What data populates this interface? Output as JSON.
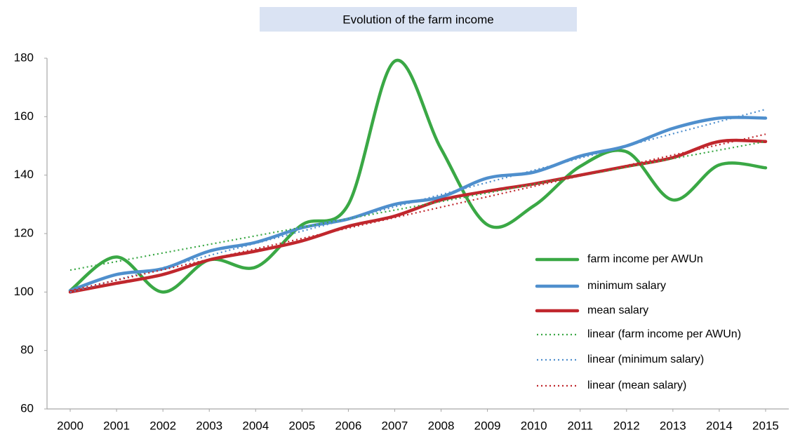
{
  "chart_data": {
    "type": "line",
    "title": "Evolution of the farm income",
    "x": [
      2000,
      2001,
      2002,
      2003,
      2004,
      2005,
      2006,
      2007,
      2008,
      2009,
      2010,
      2011,
      2012,
      2013,
      2014,
      2015
    ],
    "xlim": [
      1999.5,
      2015.5
    ],
    "xticks": [
      2000,
      2001,
      2002,
      2003,
      2004,
      2005,
      2006,
      2007,
      2008,
      2009,
      2010,
      2011,
      2012,
      2013,
      2014,
      2015
    ],
    "ylim": [
      60,
      180
    ],
    "yticks": [
      60,
      80,
      100,
      120,
      140,
      160,
      180
    ],
    "grid": false,
    "smooth": true,
    "legend": "lower right",
    "series": [
      {
        "name": "farm income per AWUn",
        "color": "#3aa845",
        "style": "solid",
        "values": [
          100.5,
          112,
          100,
          111,
          108.5,
          123,
          130,
          179,
          149,
          123,
          129.5,
          143,
          148,
          131.5,
          143.5,
          142.5
        ]
      },
      {
        "name": "minimum salary",
        "color": "#4f8fcd",
        "style": "solid",
        "values": [
          100.5,
          106,
          108,
          114,
          117,
          122,
          125,
          130,
          132.5,
          139,
          141,
          146.5,
          150,
          156,
          159.5,
          159.5
        ]
      },
      {
        "name": "mean salary",
        "color": "#c0272d",
        "style": "solid",
        "values": [
          100,
          103,
          106,
          111,
          114,
          117.5,
          122.5,
          126,
          131.5,
          134.5,
          137,
          140,
          143,
          146,
          151.5,
          151.5
        ]
      },
      {
        "name": "linear (farm income per AWUn)",
        "color": "#3aa845",
        "style": "dotted",
        "x": [
          2000,
          2015
        ],
        "values": [
          107.5,
          151.5
        ]
      },
      {
        "name": "linear (minimum salary)",
        "color": "#4f8fcd",
        "style": "dotted",
        "x": [
          2000,
          2015
        ],
        "values": [
          100,
          162.5
        ]
      },
      {
        "name": "linear (mean salary)",
        "color": "#c0272d",
        "style": "dotted",
        "x": [
          2000,
          2015
        ],
        "values": [
          100.5,
          154
        ]
      }
    ]
  }
}
